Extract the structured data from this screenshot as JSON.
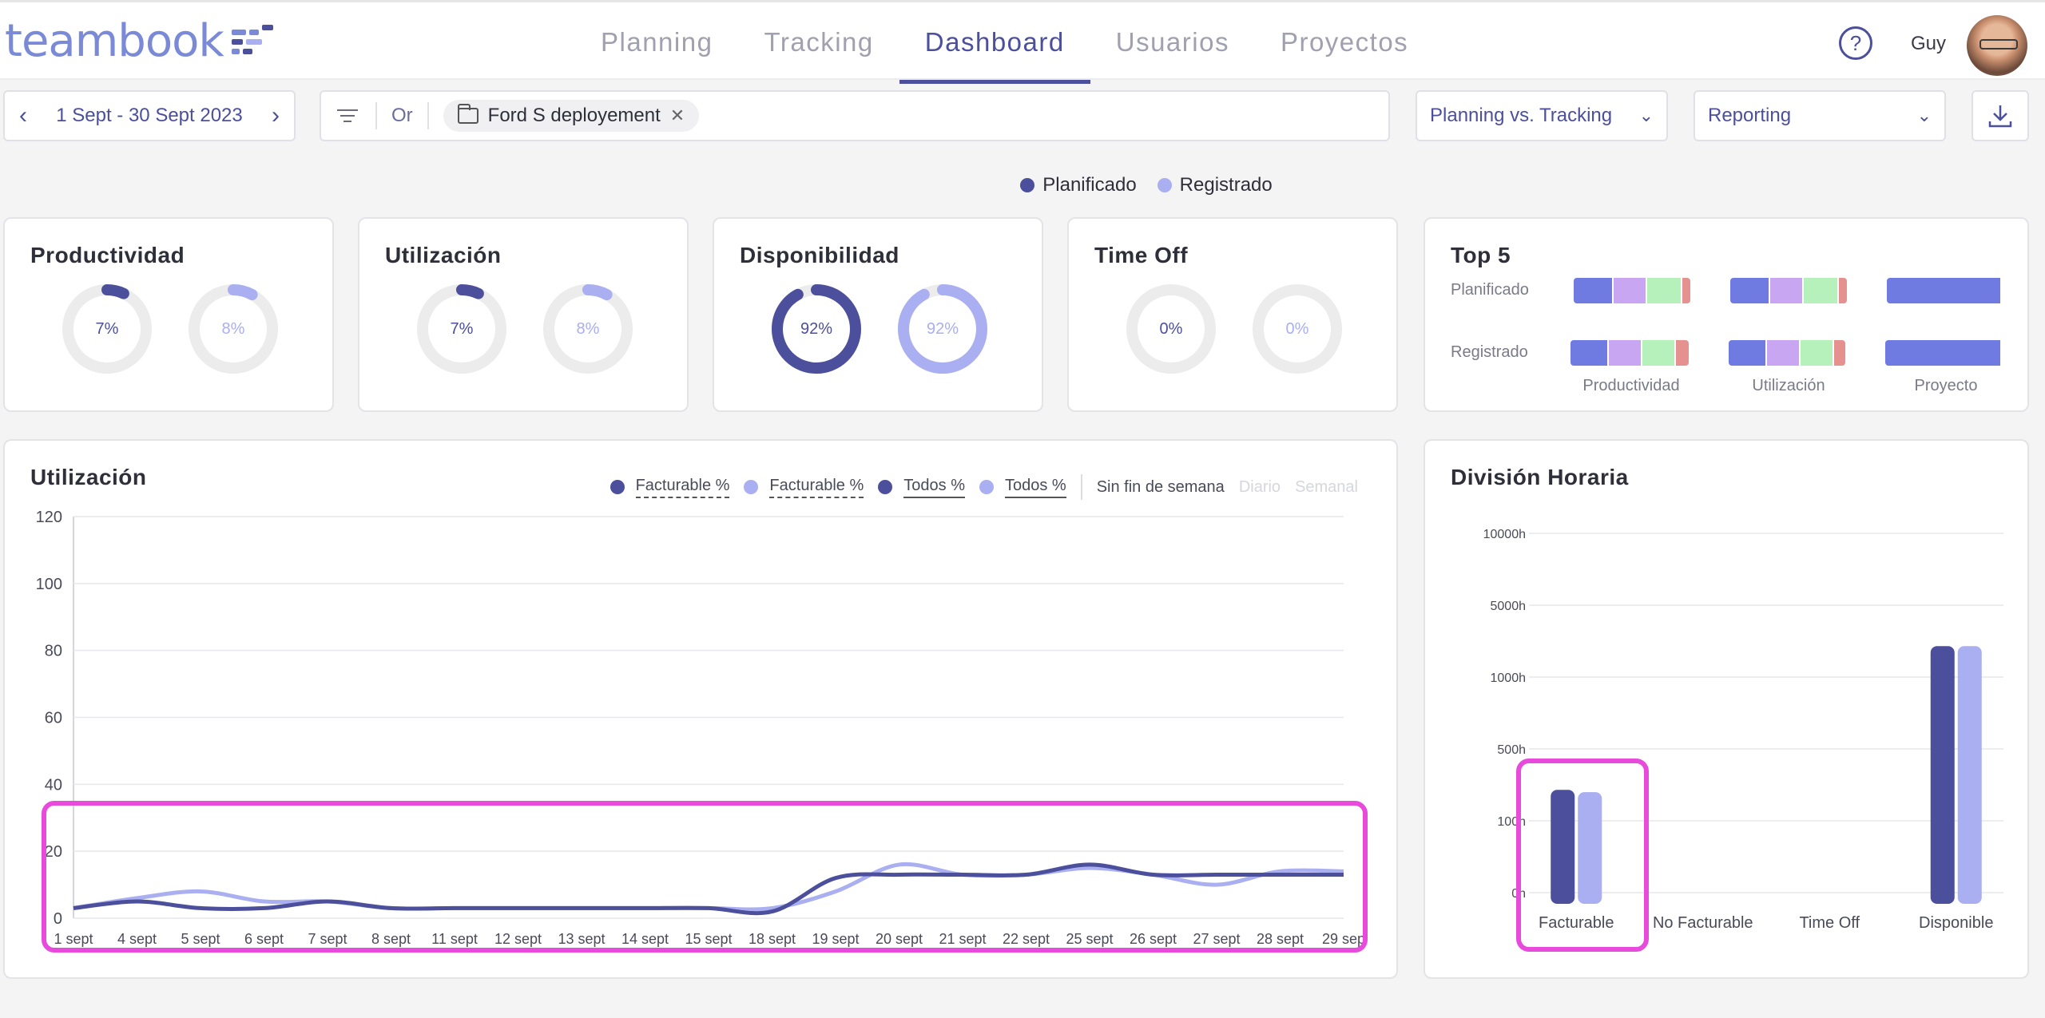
{
  "app": {
    "logo": "teambook",
    "user": "Guy"
  },
  "nav": [
    "Planning",
    "Tracking",
    "Dashboard",
    "Usuarios",
    "Proyectos"
  ],
  "nav_active": "Dashboard",
  "toolbar": {
    "date_range": "1 Sept - 30 Sept 2023",
    "or_label": "Or",
    "filter_tag": "Ford S deployement",
    "compare_select": "Planning vs. Tracking",
    "report_select": "Reporting"
  },
  "legend": {
    "planned": "Planificado",
    "tracked": "Registrado"
  },
  "colors": {
    "planned": "#4c4f9c",
    "tracked": "#a9aff0",
    "ring": "#ececec",
    "highlight": "#e84bdc"
  },
  "kpis": [
    {
      "title": "Productividad",
      "planned": "7%",
      "tracked": "8%",
      "planned_value": 7,
      "tracked_value": 8
    },
    {
      "title": "Utilización",
      "planned": "7%",
      "tracked": "8%",
      "planned_value": 7,
      "tracked_value": 8
    },
    {
      "title": "Disponibilidad",
      "planned": "92%",
      "tracked": "92%",
      "planned_value": 92,
      "tracked_value": 92
    },
    {
      "title": "Time Off",
      "planned": "0%",
      "tracked": "0%",
      "planned_value": 0,
      "tracked_value": 0
    }
  ],
  "top5": {
    "title": "Top 5",
    "rows": [
      "Planificado",
      "Registrado"
    ],
    "columns": [
      "Productividad",
      "Utilización",
      "Proyecto"
    ]
  },
  "utilization": {
    "title": "Utilización",
    "legend_items": [
      "Facturable %",
      "Facturable %",
      "Todos %",
      "Todos %"
    ],
    "weekend": "Sin fin de semana",
    "daily": "Diario",
    "weekly": "Semanal"
  },
  "hours": {
    "title": "División Horaria"
  },
  "chart_data": [
    {
      "type": "line",
      "title": "Utilización",
      "x": [
        "1 sept",
        "4 sept",
        "5 sept",
        "6 sept",
        "7 sept",
        "8 sept",
        "11 sept",
        "12 sept",
        "13 sept",
        "14 sept",
        "15 sept",
        "18 sept",
        "19 sept",
        "20 sept",
        "21 sept",
        "22 sept",
        "25 sept",
        "26 sept",
        "27 sept",
        "28 sept",
        "29 sep"
      ],
      "ylim": [
        0,
        120
      ],
      "yticks": [
        0,
        20,
        40,
        60,
        80,
        100,
        120
      ],
      "grid": true,
      "series": [
        {
          "name": "Todos %",
          "values": [
            3,
            5,
            3,
            3,
            5,
            3,
            3,
            3,
            3,
            3,
            3,
            2,
            12,
            13,
            13,
            13,
            16,
            13,
            13,
            13,
            13
          ]
        },
        {
          "name": "Todos %",
          "values": [
            3,
            6,
            8,
            5,
            5,
            3,
            3,
            3,
            3,
            3,
            3,
            3,
            8,
            16,
            13,
            13,
            15,
            13,
            10,
            14,
            14
          ]
        }
      ]
    },
    {
      "type": "bar",
      "title": "División Horaria",
      "categories": [
        "Facturable",
        "No Facturable",
        "Time Off",
        "Disponible"
      ],
      "yticks": [
        "0h",
        "100h",
        "500h",
        "1000h",
        "5000h",
        "10000h"
      ],
      "scale": "log",
      "series": [
        {
          "name": "Planificado",
          "values": [
            200,
            0,
            0,
            2000
          ]
        },
        {
          "name": "Registrado",
          "values": [
            190,
            0,
            0,
            2000
          ]
        }
      ]
    }
  ]
}
